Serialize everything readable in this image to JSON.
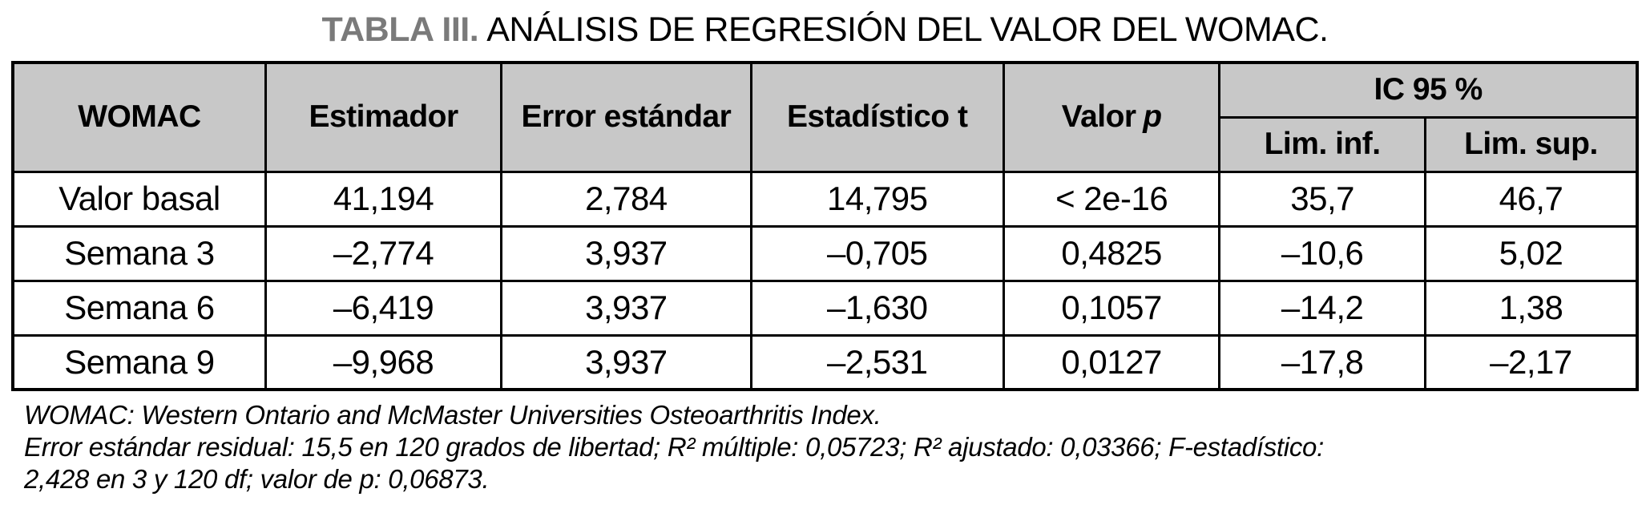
{
  "title": {
    "label": "TABLA III.",
    "text": "ANÁLISIS DE REGRESIÓN DEL VALOR DEL WOMAC."
  },
  "table": {
    "header": {
      "womac": "WOMAC",
      "estimador": "Estimador",
      "error_estandar": "Error estándar",
      "estadistico_t": "Estadístico t",
      "valor_p_prefix": "Valor",
      "valor_p_var": "p",
      "ic95": "IC 95 %",
      "lim_inf": "Lim. inf.",
      "lim_sup": "Lim. sup."
    },
    "rows": [
      {
        "womac": "Valor basal",
        "estimador": "41,194",
        "error_estandar": "2,784",
        "estadistico_t": "14,795",
        "valor_p": "< 2e-16",
        "lim_inf": "35,7",
        "lim_sup": "46,7"
      },
      {
        "womac": "Semana 3",
        "estimador": "–2,774",
        "error_estandar": "3,937",
        "estadistico_t": "–0,705",
        "valor_p": "0,4825",
        "lim_inf": "–10,6",
        "lim_sup": "5,02"
      },
      {
        "womac": "Semana 6",
        "estimador": "–6,419",
        "error_estandar": "3,937",
        "estadistico_t": "–1,630",
        "valor_p": "0,1057",
        "lim_inf": "–14,2",
        "lim_sup": "1,38"
      },
      {
        "womac": "Semana 9",
        "estimador": "–9,968",
        "error_estandar": "3,937",
        "estadistico_t": "–2,531",
        "valor_p": "0,0127",
        "lim_inf": "–17,8",
        "lim_sup": "–2,17"
      }
    ]
  },
  "footnotes": {
    "line1": "WOMAC: Western Ontario and McMaster Universities Osteoarthritis Index.",
    "line2": "Error estándar residual: 15,5 en 120 grados de libertad; R² múltiple: 0,05723; R² ajustado: 0,03366; F-estadístico:",
    "line3": "2,428 en 3 y 120 df; valor de p: 0,06873."
  },
  "colors": {
    "header_bg": "#c8c8c8",
    "border": "#000000",
    "title_label": "#7a7a7a",
    "text": "#000000"
  }
}
